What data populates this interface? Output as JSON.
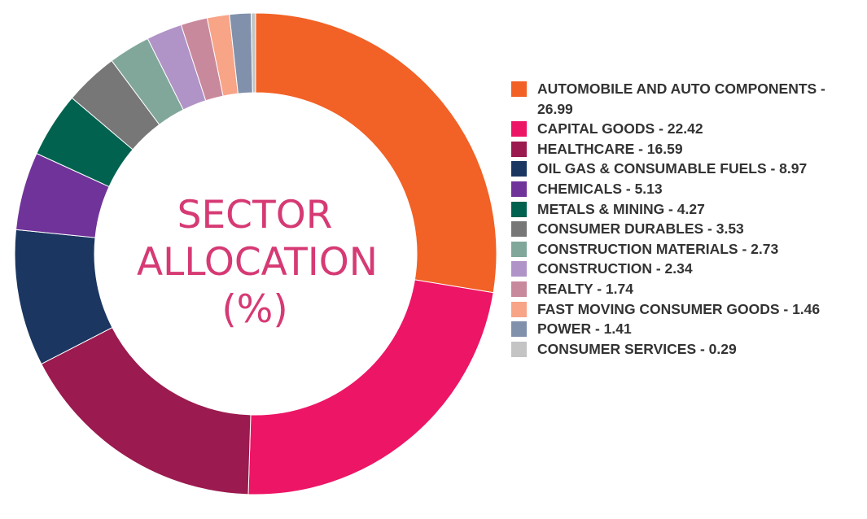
{
  "chart_data": {
    "type": "pie",
    "title": "SECTOR ALLOCATION (%)",
    "slices": [
      {
        "label": "AUTOMOBILE AND AUTO COMPONENTS - 26.99",
        "value": 26.99,
        "color": "#f26125"
      },
      {
        "label": "CAPITAL GOODS - 22.42",
        "value": 22.42,
        "color": "#ed1566"
      },
      {
        "label": "HEALTHCARE - 16.59",
        "value": 16.59,
        "color": "#9b1a4f"
      },
      {
        "label": "OIL GAS & CONSUMABLE FUELS - 8.97",
        "value": 8.97,
        "color": "#1b3761"
      },
      {
        "label": "CHEMICALS - 5.13",
        "value": 5.13,
        "color": "#70339a"
      },
      {
        "label": "METALS & MINING - 4.27",
        "value": 4.27,
        "color": "#01634f"
      },
      {
        "label": "CONSUMER DURABLES - 3.53",
        "value": 3.53,
        "color": "#777777"
      },
      {
        "label": "CONSTRUCTION MATERIALS - 2.73",
        "value": 2.73,
        "color": "#81a79a"
      },
      {
        "label": "CONSTRUCTION - 2.34",
        "value": 2.34,
        "color": "#b093c7"
      },
      {
        "label": "REALTY - 1.74",
        "value": 1.74,
        "color": "#c9899c"
      },
      {
        "label": "FAST MOVING CONSUMER GOODS - 1.46",
        "value": 1.46,
        "color": "#f8a487"
      },
      {
        "label": "POWER - 1.41",
        "value": 1.41,
        "color": "#8191ab"
      },
      {
        "label": "CONSUMER SERVICES - 0.29",
        "value": 0.29,
        "color": "#c4c4c4"
      }
    ],
    "center_text": [
      "SECTOR",
      "ALLOCATION",
      "(%)"
    ],
    "legend_position": "right"
  }
}
